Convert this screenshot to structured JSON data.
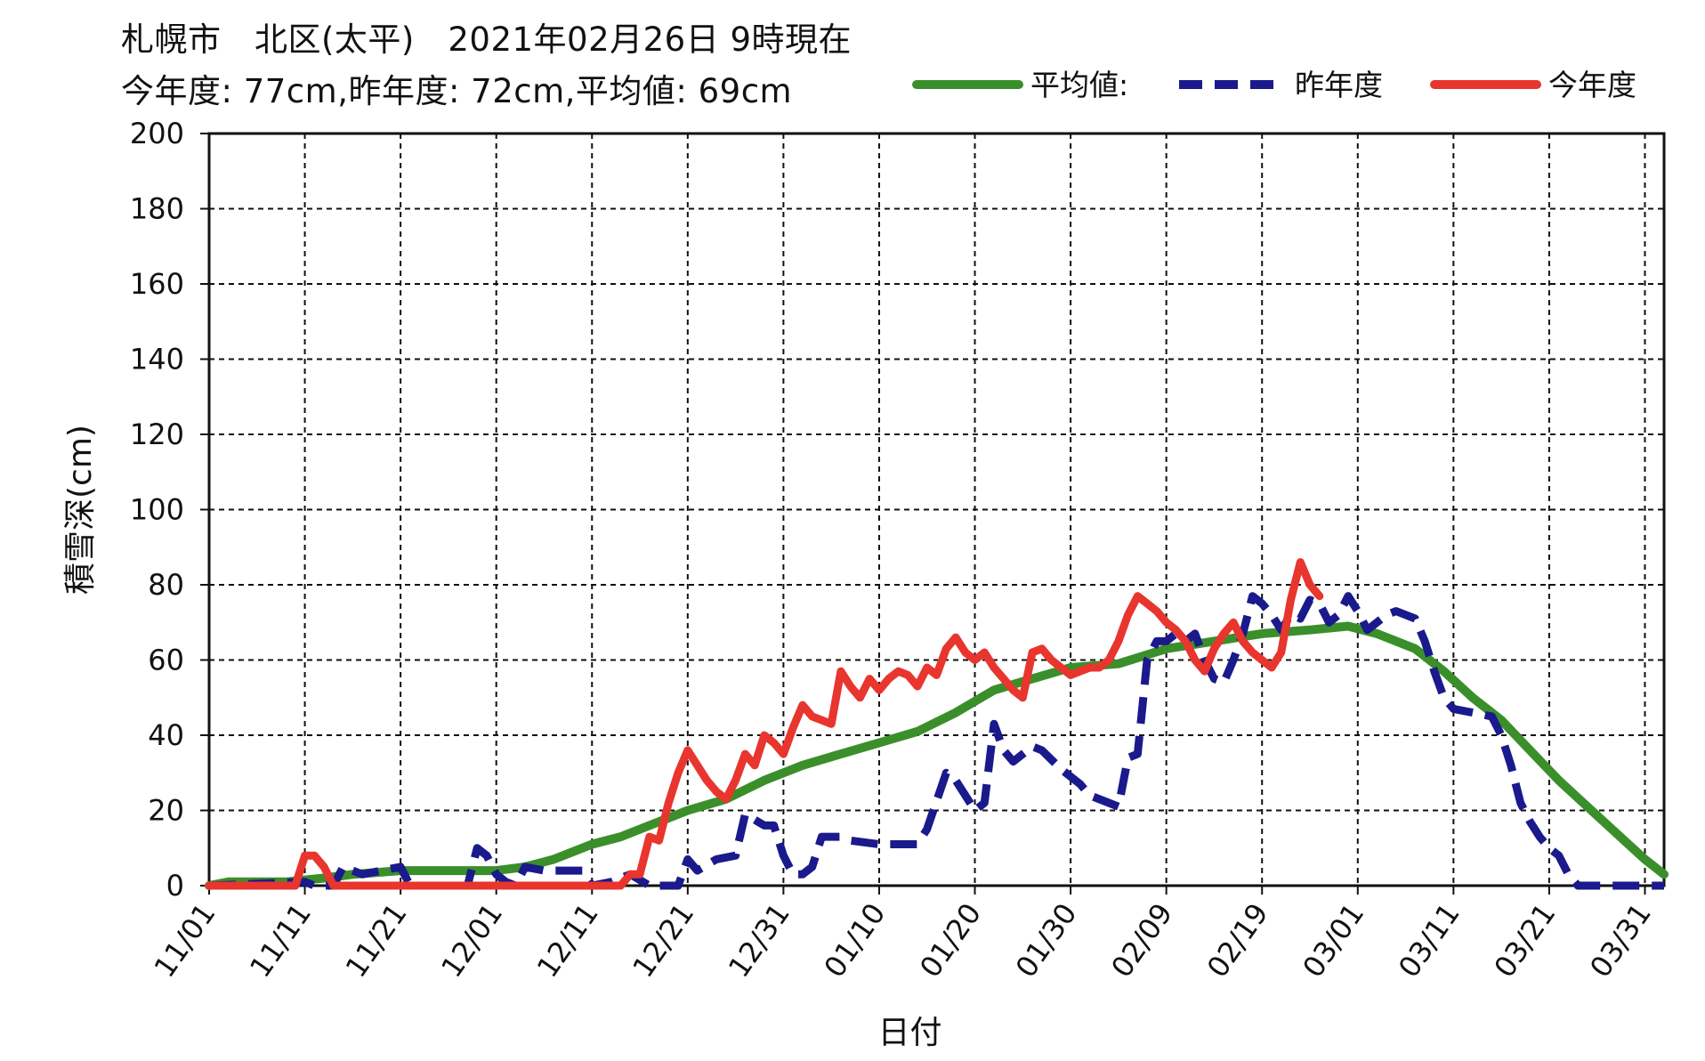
{
  "header": {
    "title": "札幌市　北区(太平)　2021年02月26日 9時現在",
    "subtitle": "今年度: 77cm,昨年度: 72cm,平均値: 69cm"
  },
  "colors": {
    "average": "#3a8f2a",
    "last_year": "#1a1a8c",
    "this_year": "#e8352e",
    "grid": "#111111"
  },
  "chart_data": {
    "type": "line",
    "title": "札幌市　北区(太平)　2021年02月26日 9時現在",
    "subtitle": "今年度: 77cm,昨年度: 72cm,平均値: 69cm",
    "xlabel": "日付",
    "ylabel": "積雪深(cm)",
    "ylim": [
      0,
      200
    ],
    "yticks": [
      "0",
      "20",
      "40",
      "60",
      "80",
      "100",
      "120",
      "140",
      "160",
      "180",
      "200"
    ],
    "x_range_days": [
      0,
      152
    ],
    "x_ticks": [
      {
        "label": "11/01",
        "day": 0
      },
      {
        "label": "11/11",
        "day": 10
      },
      {
        "label": "11/21",
        "day": 20
      },
      {
        "label": "12/01",
        "day": 30
      },
      {
        "label": "12/11",
        "day": 40
      },
      {
        "label": "12/21",
        "day": 50
      },
      {
        "label": "12/31",
        "day": 60
      },
      {
        "label": "01/10",
        "day": 70
      },
      {
        "label": "01/20",
        "day": 80
      },
      {
        "label": "01/30",
        "day": 90
      },
      {
        "label": "02/09",
        "day": 100
      },
      {
        "label": "02/19",
        "day": 110
      },
      {
        "label": "03/01",
        "day": 120
      },
      {
        "label": "03/11",
        "day": 130
      },
      {
        "label": "03/21",
        "day": 140
      },
      {
        "label": "03/31",
        "day": 150
      }
    ],
    "grid": true,
    "legend_position": "top-right",
    "series": [
      {
        "name": "平均値:",
        "style": "solid",
        "points": [
          [
            0,
            0
          ],
          [
            2,
            1
          ],
          [
            8,
            1
          ],
          [
            12,
            2
          ],
          [
            15,
            3
          ],
          [
            20,
            4
          ],
          [
            25,
            4
          ],
          [
            30,
            4
          ],
          [
            33,
            5
          ],
          [
            36,
            7
          ],
          [
            40,
            11
          ],
          [
            43,
            13
          ],
          [
            46,
            16
          ],
          [
            50,
            20
          ],
          [
            54,
            23
          ],
          [
            58,
            28
          ],
          [
            62,
            32
          ],
          [
            66,
            35
          ],
          [
            70,
            38
          ],
          [
            74,
            41
          ],
          [
            78,
            46
          ],
          [
            82,
            52
          ],
          [
            86,
            55
          ],
          [
            90,
            58
          ],
          [
            95,
            59
          ],
          [
            100,
            63
          ],
          [
            105,
            65
          ],
          [
            110,
            67
          ],
          [
            115,
            68
          ],
          [
            119,
            69
          ],
          [
            122,
            67
          ],
          [
            126,
            63
          ],
          [
            129,
            57
          ],
          [
            132,
            50
          ],
          [
            135,
            44
          ],
          [
            138,
            36
          ],
          [
            141,
            28
          ],
          [
            144,
            21
          ],
          [
            147,
            14
          ],
          [
            150,
            7
          ],
          [
            152,
            3
          ]
        ]
      },
      {
        "name": "昨年度",
        "style": "dashed",
        "points": [
          [
            0,
            0
          ],
          [
            10,
            1
          ],
          [
            11,
            0
          ],
          [
            13,
            0
          ],
          [
            14,
            5
          ],
          [
            16,
            3
          ],
          [
            20,
            5
          ],
          [
            21,
            0
          ],
          [
            27,
            0
          ],
          [
            28,
            10
          ],
          [
            29,
            8
          ],
          [
            30,
            3
          ],
          [
            31,
            1
          ],
          [
            32,
            0
          ],
          [
            33,
            5
          ],
          [
            35,
            4
          ],
          [
            39,
            4
          ],
          [
            40,
            0
          ],
          [
            42,
            1
          ],
          [
            44,
            3
          ],
          [
            46,
            0
          ],
          [
            49,
            0
          ],
          [
            50,
            7
          ],
          [
            51,
            4
          ],
          [
            53,
            7
          ],
          [
            55,
            8
          ],
          [
            56,
            19
          ],
          [
            58,
            16
          ],
          [
            59,
            16
          ],
          [
            60,
            8
          ],
          [
            61,
            3
          ],
          [
            62,
            3
          ],
          [
            63,
            5
          ],
          [
            64,
            13
          ],
          [
            66,
            13
          ],
          [
            67,
            12
          ],
          [
            70,
            11
          ],
          [
            74,
            11
          ],
          [
            75,
            15
          ],
          [
            77,
            30
          ],
          [
            78,
            28
          ],
          [
            79,
            24
          ],
          [
            80,
            20
          ],
          [
            81,
            22
          ],
          [
            82,
            43
          ],
          [
            83,
            36
          ],
          [
            84,
            33
          ],
          [
            86,
            37
          ],
          [
            87,
            36
          ],
          [
            89,
            31
          ],
          [
            91,
            27
          ],
          [
            92,
            24
          ],
          [
            94,
            22
          ],
          [
            95,
            21
          ],
          [
            96,
            34
          ],
          [
            97,
            35
          ],
          [
            98,
            60
          ],
          [
            99,
            65
          ],
          [
            100,
            65
          ],
          [
            101,
            67
          ],
          [
            102,
            65
          ],
          [
            103,
            67
          ],
          [
            104,
            60
          ],
          [
            105,
            55
          ],
          [
            106,
            54
          ],
          [
            107,
            60
          ],
          [
            108,
            67
          ],
          [
            109,
            77
          ],
          [
            110,
            75
          ],
          [
            111,
            72
          ],
          [
            112,
            68
          ],
          [
            113,
            72
          ],
          [
            114,
            71
          ],
          [
            115,
            76
          ],
          [
            116,
            75
          ],
          [
            117,
            70
          ],
          [
            118,
            72
          ],
          [
            119,
            77
          ],
          [
            120,
            73
          ],
          [
            121,
            68
          ],
          [
            122,
            70
          ],
          [
            123,
            72
          ],
          [
            124,
            73
          ],
          [
            125,
            72
          ],
          [
            126,
            71
          ],
          [
            127,
            65
          ],
          [
            128,
            57
          ],
          [
            129,
            50
          ],
          [
            130,
            47
          ],
          [
            132,
            46
          ],
          [
            134,
            45
          ],
          [
            135,
            40
          ],
          [
            136,
            32
          ],
          [
            137,
            22
          ],
          [
            138,
            17
          ],
          [
            139,
            13
          ],
          [
            140,
            10
          ],
          [
            141,
            8
          ],
          [
            142,
            3
          ],
          [
            143,
            0
          ],
          [
            145,
            0
          ],
          [
            152,
            0
          ]
        ]
      },
      {
        "name": "今年度",
        "style": "solid",
        "points": [
          [
            0,
            0
          ],
          [
            9,
            0
          ],
          [
            10,
            8
          ],
          [
            11,
            8
          ],
          [
            12,
            5
          ],
          [
            13,
            0
          ],
          [
            15,
            0
          ],
          [
            43,
            0
          ],
          [
            44,
            3
          ],
          [
            45,
            3
          ],
          [
            46,
            13
          ],
          [
            47,
            12
          ],
          [
            48,
            22
          ],
          [
            49,
            30
          ],
          [
            50,
            36
          ],
          [
            51,
            32
          ],
          [
            52,
            28
          ],
          [
            53,
            25
          ],
          [
            54,
            23
          ],
          [
            55,
            28
          ],
          [
            56,
            35
          ],
          [
            57,
            32
          ],
          [
            58,
            40
          ],
          [
            59,
            38
          ],
          [
            60,
            35
          ],
          [
            61,
            42
          ],
          [
            62,
            48
          ],
          [
            63,
            45
          ],
          [
            64,
            44
          ],
          [
            65,
            43
          ],
          [
            66,
            57
          ],
          [
            67,
            53
          ],
          [
            68,
            50
          ],
          [
            69,
            55
          ],
          [
            70,
            52
          ],
          [
            71,
            55
          ],
          [
            72,
            57
          ],
          [
            73,
            56
          ],
          [
            74,
            53
          ],
          [
            75,
            58
          ],
          [
            76,
            56
          ],
          [
            77,
            63
          ],
          [
            78,
            66
          ],
          [
            79,
            62
          ],
          [
            80,
            60
          ],
          [
            81,
            62
          ],
          [
            82,
            58
          ],
          [
            83,
            55
          ],
          [
            84,
            52
          ],
          [
            85,
            50
          ],
          [
            86,
            62
          ],
          [
            87,
            63
          ],
          [
            88,
            60
          ],
          [
            89,
            58
          ],
          [
            90,
            56
          ],
          [
            91,
            57
          ],
          [
            92,
            58
          ],
          [
            93,
            58
          ],
          [
            94,
            60
          ],
          [
            95,
            65
          ],
          [
            96,
            72
          ],
          [
            97,
            77
          ],
          [
            98,
            75
          ],
          [
            99,
            73
          ],
          [
            100,
            70
          ],
          [
            101,
            68
          ],
          [
            102,
            65
          ],
          [
            103,
            60
          ],
          [
            104,
            57
          ],
          [
            105,
            63
          ],
          [
            106,
            67
          ],
          [
            107,
            70
          ],
          [
            108,
            65
          ],
          [
            109,
            62
          ],
          [
            110,
            60
          ],
          [
            111,
            58
          ],
          [
            112,
            62
          ],
          [
            113,
            76
          ],
          [
            114,
            86
          ],
          [
            115,
            80
          ],
          [
            116,
            77
          ]
        ]
      }
    ]
  }
}
